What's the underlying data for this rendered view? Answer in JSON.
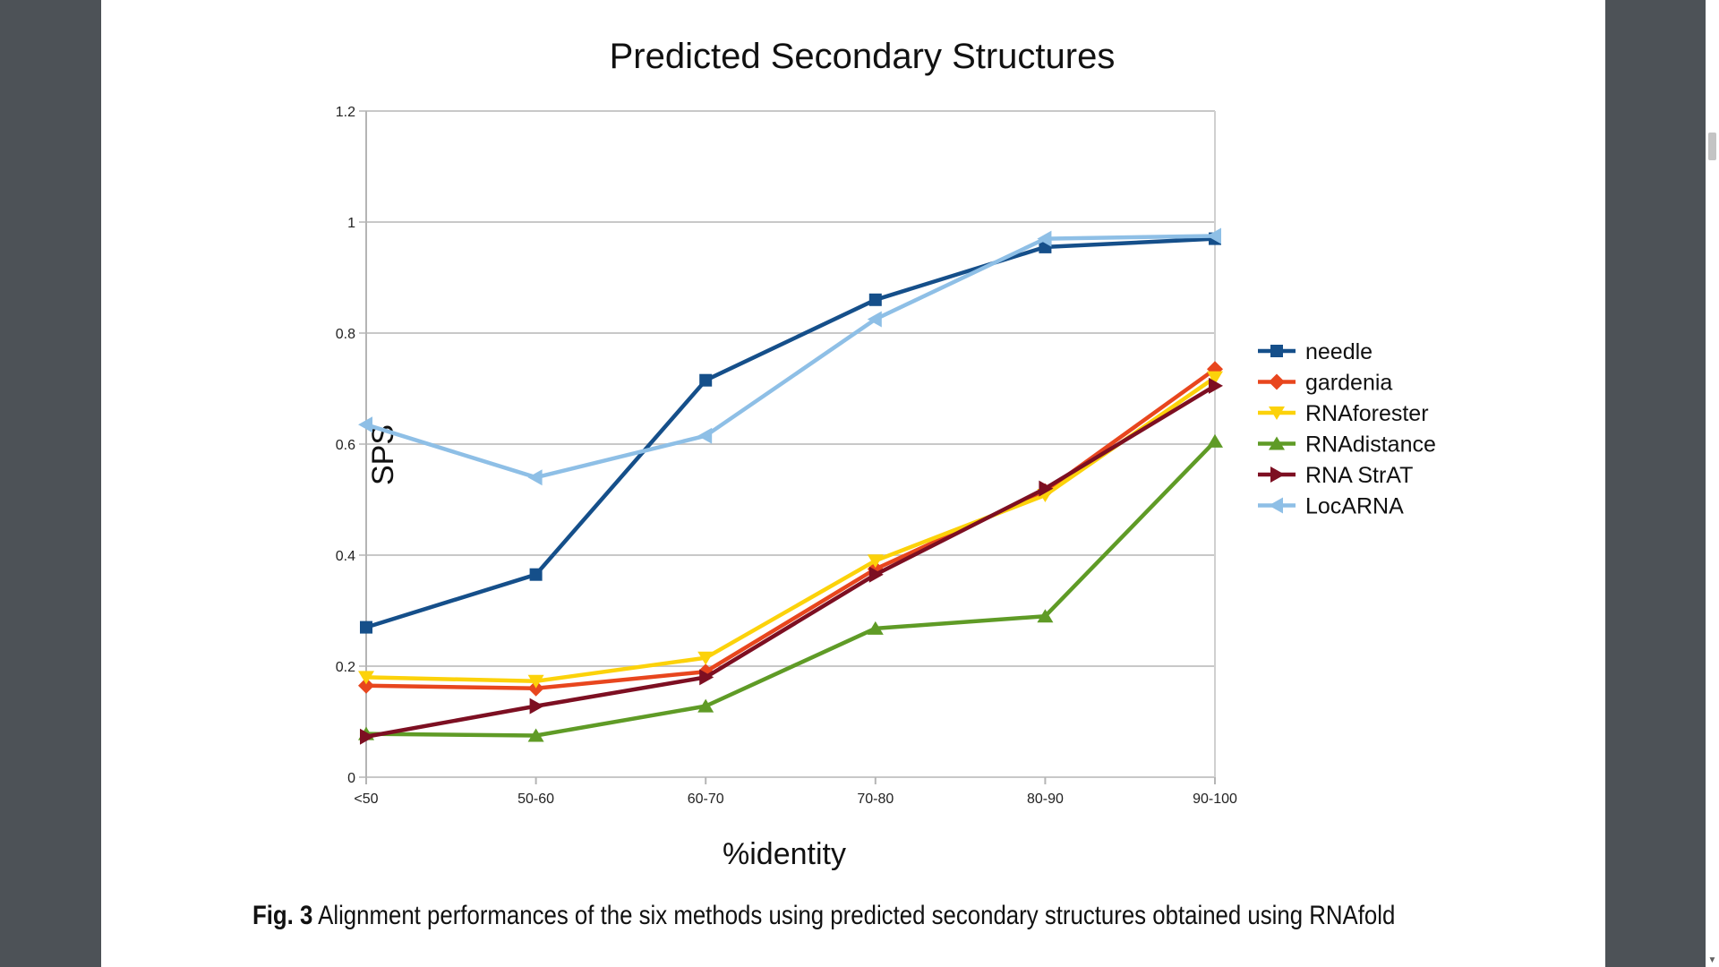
{
  "caption": {
    "label": "Fig. 3",
    "text": "Alignment performances of the six methods using predicted secondary structures obtained using RNAfold"
  },
  "chart_data": {
    "type": "line",
    "title": "Predicted Secondary Structures",
    "xlabel": "%identity",
    "ylabel": "SPS",
    "categories": [
      "<50",
      "50-60",
      "60-70",
      "70-80",
      "80-90",
      "90-100"
    ],
    "ylim": [
      0,
      1.2
    ],
    "yticks": [
      0,
      0.2,
      0.4,
      0.6,
      0.8,
      1,
      1.2
    ],
    "ytick_labels": [
      "0",
      "0.2",
      "0.4",
      "0.6",
      "0.8",
      "1",
      "1.2"
    ],
    "grid": true,
    "legend_position": "right",
    "series": [
      {
        "name": "needle",
        "color": "#154f8a",
        "marker": "square",
        "values": [
          0.27,
          0.365,
          0.715,
          0.86,
          0.955,
          0.97
        ]
      },
      {
        "name": "gardenia",
        "color": "#e8461e",
        "marker": "diamond",
        "values": [
          0.165,
          0.16,
          0.19,
          0.375,
          0.515,
          0.735
        ]
      },
      {
        "name": "RNAforester",
        "color": "#fcd20a",
        "marker": "triangle-down",
        "values": [
          0.18,
          0.173,
          0.215,
          0.39,
          0.508,
          0.72
        ]
      },
      {
        "name": "RNAdistance",
        "color": "#5f9b26",
        "marker": "triangle-up",
        "values": [
          0.078,
          0.075,
          0.128,
          0.268,
          0.29,
          0.605
        ]
      },
      {
        "name": "RNA StrAT",
        "color": "#7d0f22",
        "marker": "triangle-right",
        "values": [
          0.073,
          0.128,
          0.18,
          0.365,
          0.52,
          0.705
        ]
      },
      {
        "name": "LocARNA",
        "color": "#8ebfe6",
        "marker": "triangle-left",
        "values": [
          0.635,
          0.54,
          0.615,
          0.825,
          0.97,
          0.975
        ]
      }
    ]
  }
}
